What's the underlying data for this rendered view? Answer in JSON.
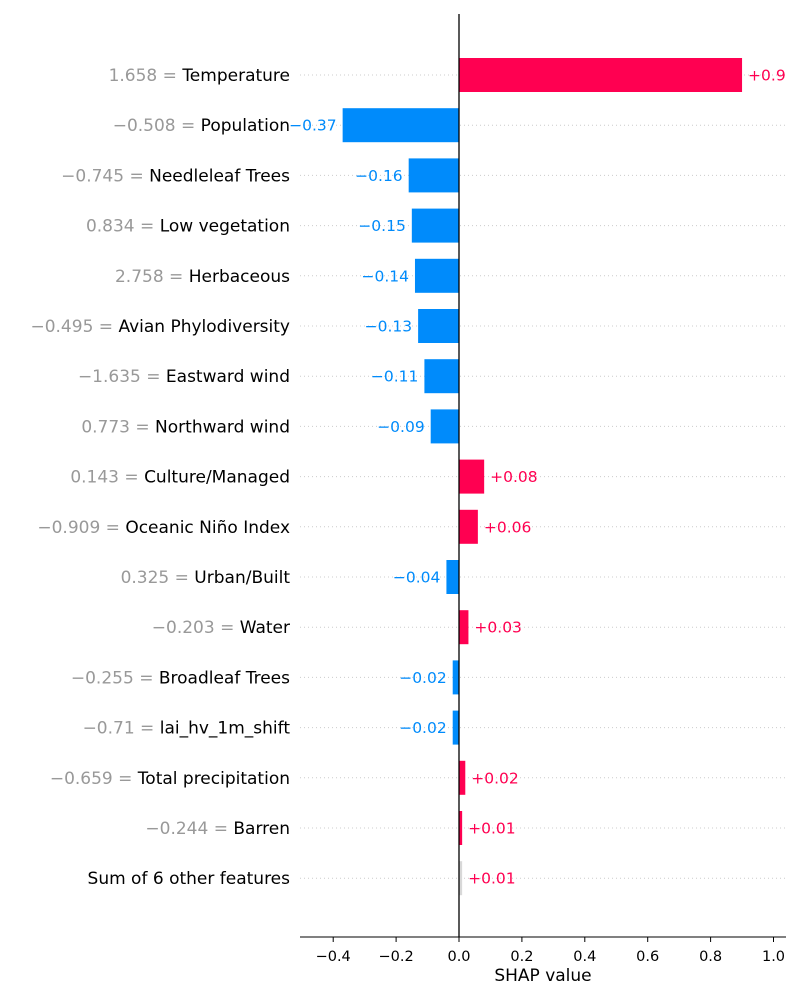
{
  "chart_data": {
    "type": "bar",
    "subtype": "shap-waterfall-bar",
    "xlabel": "SHAP value",
    "xlim": [
      -0.5,
      1.03
    ],
    "xticks": [
      "−0.4",
      "−0.2",
      "0.0",
      "0.2",
      "0.4",
      "0.6",
      "0.8",
      "1.0"
    ],
    "xtick_values": [
      -0.4,
      -0.2,
      0.0,
      0.2,
      0.4,
      0.6,
      0.8,
      1.0
    ],
    "grid": "horizontal dotted per row",
    "colors": {
      "positive": "#ff0051",
      "negative": "#008bfb",
      "other": "#d8d8d8",
      "feature_value": "#999999"
    },
    "rows": [
      {
        "value": "1.658",
        "feature": "Temperature",
        "shap": 0.9,
        "label": "+0.9"
      },
      {
        "value": "−0.508",
        "feature": "Population",
        "shap": -0.37,
        "label": "−0.37"
      },
      {
        "value": "−0.745",
        "feature": "Needleleaf Trees",
        "shap": -0.16,
        "label": "−0.16"
      },
      {
        "value": "0.834",
        "feature": "Low vegetation",
        "shap": -0.15,
        "label": "−0.15"
      },
      {
        "value": "2.758",
        "feature": "Herbaceous",
        "shap": -0.14,
        "label": "−0.14"
      },
      {
        "value": "−0.495",
        "feature": "Avian Phylodiversity",
        "shap": -0.13,
        "label": "−0.13"
      },
      {
        "value": "−1.635",
        "feature": "Eastward wind",
        "shap": -0.11,
        "label": "−0.11"
      },
      {
        "value": "0.773",
        "feature": "Northward wind",
        "shap": -0.09,
        "label": "−0.09"
      },
      {
        "value": "0.143",
        "feature": "Culture/Managed",
        "shap": 0.08,
        "label": "+0.08"
      },
      {
        "value": "−0.909",
        "feature": "Oceanic Niño Index",
        "shap": 0.06,
        "label": "+0.06"
      },
      {
        "value": "0.325",
        "feature": "Urban/Built",
        "shap": -0.04,
        "label": "−0.04"
      },
      {
        "value": "−0.203",
        "feature": "Water",
        "shap": 0.03,
        "label": "+0.03"
      },
      {
        "value": "−0.255",
        "feature": "Broadleaf Trees",
        "shap": -0.02,
        "label": "−0.02"
      },
      {
        "value": "−0.71",
        "feature": "lai_hv_1m_shift",
        "shap": -0.02,
        "label": "−0.02"
      },
      {
        "value": "−0.659",
        "feature": "Total precipitation",
        "shap": 0.02,
        "label": "+0.02"
      },
      {
        "value": "−0.244",
        "feature": "Barren",
        "shap": 0.01,
        "label": "+0.01"
      },
      {
        "value": "",
        "feature": "Sum of 6 other features",
        "shap": 0.01,
        "label": "+0.01",
        "other": true
      }
    ]
  }
}
